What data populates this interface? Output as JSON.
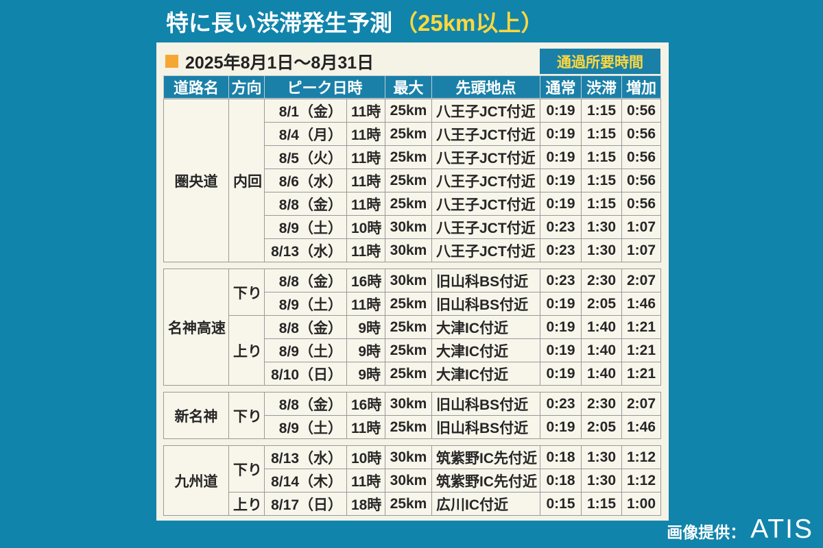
{
  "title": {
    "main": "特に長い渋滞発生予測",
    "suffix": "（25km以上）"
  },
  "period": {
    "label": "2025年8月1日～8月31日"
  },
  "transit_header": "通過所要時間",
  "columns": {
    "road": "道路名",
    "direction": "方向",
    "peak": "ピーク日時",
    "max": "最大",
    "location": "先頭地点",
    "normal": "通常",
    "jam": "渋滞",
    "increase": "増加"
  },
  "credit": {
    "label": "画像提供：",
    "name": "ATIS"
  },
  "colors": {
    "page_bg": "#1184ab",
    "panel_bg": "#f5f2e6",
    "header_teal": "#1a80a8",
    "accent_yellow": "#ffd83e",
    "bullet_orange": "#f5a733",
    "red": "#e8241e",
    "saturday_blue": "#1793c5"
  },
  "sections": [
    {
      "road": "圏央道",
      "groups": [
        {
          "direction": "内回",
          "rows": [
            {
              "date": "8/1（金）",
              "day": "",
              "time": "11時",
              "max": "25km",
              "location": "八王子JCT付近",
              "normal": "0:19",
              "jam": "1:15",
              "increase": "0:56"
            },
            {
              "date": "8/4（月）",
              "day": "",
              "time": "11時",
              "max": "25km",
              "location": "八王子JCT付近",
              "normal": "0:19",
              "jam": "1:15",
              "increase": "0:56"
            },
            {
              "date": "8/5（火）",
              "day": "",
              "time": "11時",
              "max": "25km",
              "location": "八王子JCT付近",
              "normal": "0:19",
              "jam": "1:15",
              "increase": "0:56"
            },
            {
              "date": "8/6（水）",
              "day": "",
              "time": "11時",
              "max": "25km",
              "location": "八王子JCT付近",
              "normal": "0:19",
              "jam": "1:15",
              "increase": "0:56"
            },
            {
              "date": "8/8（金）",
              "day": "",
              "time": "11時",
              "max": "25km",
              "location": "八王子JCT付近",
              "normal": "0:19",
              "jam": "1:15",
              "increase": "0:56"
            },
            {
              "date": "8/9（土）",
              "day": "sat",
              "time": "10時",
              "max": "30km",
              "location": "八王子JCT付近",
              "normal": "0:23",
              "jam": "1:30",
              "increase": "1:07"
            },
            {
              "date": "8/13（水）",
              "day": "",
              "time": "11時",
              "max": "30km",
              "location": "八王子JCT付近",
              "normal": "0:23",
              "jam": "1:30",
              "increase": "1:07"
            }
          ]
        }
      ]
    },
    {
      "road": "名神高速",
      "groups": [
        {
          "direction": "下り",
          "rows": [
            {
              "date": "8/8（金）",
              "day": "",
              "time": "16時",
              "max": "30km",
              "location": "旧山科BS付近",
              "normal": "0:23",
              "jam": "2:30",
              "increase": "2:07"
            },
            {
              "date": "8/9（土）",
              "day": "sat",
              "time": "11時",
              "max": "25km",
              "location": "旧山科BS付近",
              "normal": "0:19",
              "jam": "2:05",
              "increase": "1:46"
            }
          ]
        },
        {
          "direction": "上り",
          "rows": [
            {
              "date": "8/8（金）",
              "day": "",
              "time": "9時",
              "max": "25km",
              "location": "大津IC付近",
              "normal": "0:19",
              "jam": "1:40",
              "increase": "1:21"
            },
            {
              "date": "8/9（土）",
              "day": "sat",
              "time": "9時",
              "max": "25km",
              "location": "大津IC付近",
              "normal": "0:19",
              "jam": "1:40",
              "increase": "1:21"
            },
            {
              "date": "8/10（日）",
              "day": "sun",
              "time": "9時",
              "max": "25km",
              "location": "大津IC付近",
              "normal": "0:19",
              "jam": "1:40",
              "increase": "1:21"
            }
          ]
        }
      ]
    },
    {
      "road": "新名神",
      "groups": [
        {
          "direction": "下り",
          "rows": [
            {
              "date": "8/8（金）",
              "day": "",
              "time": "16時",
              "max": "30km",
              "location": "旧山科BS付近",
              "normal": "0:23",
              "jam": "2:30",
              "increase": "2:07"
            },
            {
              "date": "8/9（土）",
              "day": "sat",
              "time": "11時",
              "max": "25km",
              "location": "旧山科BS付近",
              "normal": "0:19",
              "jam": "2:05",
              "increase": "1:46"
            }
          ]
        }
      ]
    },
    {
      "road": "九州道",
      "groups": [
        {
          "direction": "下り",
          "rows": [
            {
              "date": "8/13（水）",
              "day": "",
              "time": "10時",
              "max": "30km",
              "location": "筑紫野IC先付近",
              "normal": "0:18",
              "jam": "1:30",
              "increase": "1:12"
            },
            {
              "date": "8/14（木）",
              "day": "",
              "time": "11時",
              "max": "30km",
              "location": "筑紫野IC先付近",
              "normal": "0:18",
              "jam": "1:30",
              "increase": "1:12"
            }
          ]
        },
        {
          "direction": "上り",
          "rows": [
            {
              "date": "8/17（日）",
              "day": "sun",
              "time": "18時",
              "max": "25km",
              "location": "広川IC付近",
              "normal": "0:15",
              "jam": "1:15",
              "increase": "1:00"
            }
          ]
        }
      ]
    }
  ],
  "chart_data": {
    "type": "table",
    "title": "特に長い渋滞発生予測（25km以上） 2025年8月1日～8月31日",
    "headers": [
      "道路名",
      "方向",
      "ピーク日付",
      "ピーク時刻",
      "最大",
      "先頭地点",
      "通過所要時間 通常",
      "通過所要時間 渋滞",
      "通過所要時間 増加"
    ],
    "rows": [
      [
        "圏央道",
        "内回",
        "8/1（金）",
        "11時",
        "25km",
        "八王子JCT付近",
        "0:19",
        "1:15",
        "0:56"
      ],
      [
        "圏央道",
        "内回",
        "8/4（月）",
        "11時",
        "25km",
        "八王子JCT付近",
        "0:19",
        "1:15",
        "0:56"
      ],
      [
        "圏央道",
        "内回",
        "8/5（火）",
        "11時",
        "25km",
        "八王子JCT付近",
        "0:19",
        "1:15",
        "0:56"
      ],
      [
        "圏央道",
        "内回",
        "8/6（水）",
        "11時",
        "25km",
        "八王子JCT付近",
        "0:19",
        "1:15",
        "0:56"
      ],
      [
        "圏央道",
        "内回",
        "8/8（金）",
        "11時",
        "25km",
        "八王子JCT付近",
        "0:19",
        "1:15",
        "0:56"
      ],
      [
        "圏央道",
        "内回",
        "8/9（土）",
        "10時",
        "30km",
        "八王子JCT付近",
        "0:23",
        "1:30",
        "1:07"
      ],
      [
        "圏央道",
        "内回",
        "8/13（水）",
        "11時",
        "30km",
        "八王子JCT付近",
        "0:23",
        "1:30",
        "1:07"
      ],
      [
        "名神高速",
        "下り",
        "8/8（金）",
        "16時",
        "30km",
        "旧山科BS付近",
        "0:23",
        "2:30",
        "2:07"
      ],
      [
        "名神高速",
        "下り",
        "8/9（土）",
        "11時",
        "25km",
        "旧山科BS付近",
        "0:19",
        "2:05",
        "1:46"
      ],
      [
        "名神高速",
        "上り",
        "8/8（金）",
        "9時",
        "25km",
        "大津IC付近",
        "0:19",
        "1:40",
        "1:21"
      ],
      [
        "名神高速",
        "上り",
        "8/9（土）",
        "9時",
        "25km",
        "大津IC付近",
        "0:19",
        "1:40",
        "1:21"
      ],
      [
        "名神高速",
        "上り",
        "8/10（日）",
        "9時",
        "25km",
        "大津IC付近",
        "0:19",
        "1:40",
        "1:21"
      ],
      [
        "新名神",
        "下り",
        "8/8（金）",
        "16時",
        "30km",
        "旧山科BS付近",
        "0:23",
        "2:30",
        "2:07"
      ],
      [
        "新名神",
        "下り",
        "8/9（土）",
        "11時",
        "25km",
        "旧山科BS付近",
        "0:19",
        "2:05",
        "1:46"
      ],
      [
        "九州道",
        "下り",
        "8/13（水）",
        "10時",
        "30km",
        "筑紫野IC先付近",
        "0:18",
        "1:30",
        "1:12"
      ],
      [
        "九州道",
        "下り",
        "8/14（木）",
        "11時",
        "30km",
        "筑紫野IC先付近",
        "0:18",
        "1:30",
        "1:12"
      ],
      [
        "九州道",
        "上り",
        "8/17（日）",
        "18時",
        "25km",
        "広川IC付近",
        "0:15",
        "1:15",
        "1:00"
      ]
    ]
  }
}
